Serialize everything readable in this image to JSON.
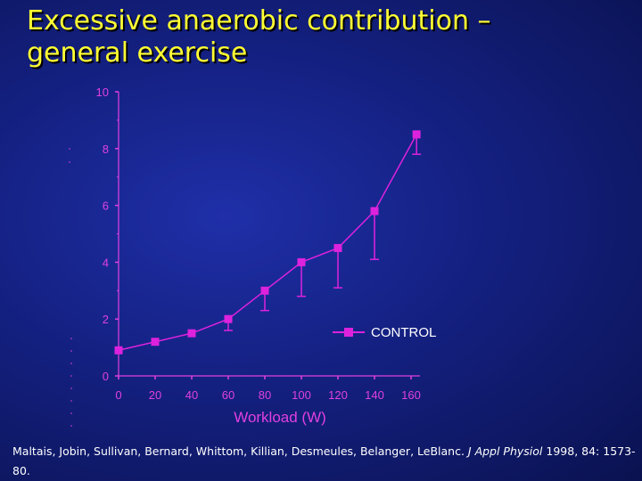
{
  "slide": {
    "title_line1": "Excessive anaerobic contribution –",
    "title_line2": "general exercise"
  },
  "citation": {
    "authors": "Maltais, Jobin, Sullivan, Bernard, Whittom, Killian, Desmeules, Belanger, LeBlanc.",
    "journal": "J Appl Physiol",
    "details": "1998, 84: 1573-80."
  },
  "colors": {
    "title": "#ffff33",
    "series": "#dd22dd",
    "axis": "#e040e0",
    "text": "#ffffff"
  },
  "chart_data": {
    "type": "line",
    "title": "",
    "xlabel": "Workload (W)",
    "ylabel": "",
    "xlim": [
      0,
      160
    ],
    "ylim": [
      0,
      10
    ],
    "xticks": [
      0,
      20,
      40,
      60,
      80,
      100,
      120,
      140,
      160
    ],
    "yticks": [
      0,
      2,
      4,
      6,
      8,
      10
    ],
    "series": [
      {
        "name": "CONTROL",
        "x": [
          0,
          20,
          40,
          60,
          80,
          100,
          120,
          140,
          163
        ],
        "y": [
          0.9,
          1.2,
          1.5,
          2.0,
          3.0,
          4.0,
          4.5,
          5.8,
          8.5
        ],
        "error_low": [
          0,
          0,
          0,
          0.4,
          0.7,
          1.2,
          1.4,
          1.7,
          0.7
        ]
      }
    ],
    "legend": {
      "position": "right",
      "label": "CONTROL"
    }
  }
}
